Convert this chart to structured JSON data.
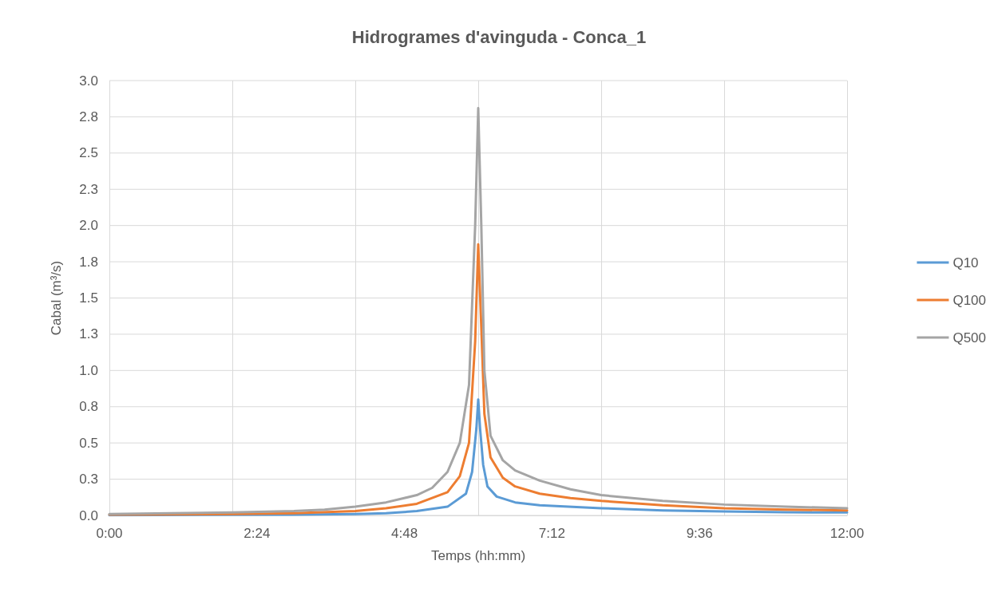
{
  "chart_data": {
    "type": "line",
    "title": "Hidrogrames d'avinguda - Conca_1",
    "xlabel": "Temps (hh:mm)",
    "ylabel": "Cabal (m³/s)",
    "xlim": [
      0,
      12
    ],
    "xticks": [
      {
        "value": 0,
        "label": "0:00"
      },
      {
        "value": 2.4,
        "label": "2:24"
      },
      {
        "value": 4.8,
        "label": "4:48"
      },
      {
        "value": 7.2,
        "label": "7:12"
      },
      {
        "value": 9.6,
        "label": "9:36"
      },
      {
        "value": 12,
        "label": "12:00"
      }
    ],
    "ylim": [
      0,
      3
    ],
    "yticks": [
      {
        "value": 0,
        "label": "0.0"
      },
      {
        "value": 0.25,
        "label": "0.3"
      },
      {
        "value": 0.5,
        "label": "0.5"
      },
      {
        "value": 0.75,
        "label": "0.8"
      },
      {
        "value": 1,
        "label": "1.0"
      },
      {
        "value": 1.25,
        "label": "1.3"
      },
      {
        "value": 1.5,
        "label": "1.5"
      },
      {
        "value": 1.75,
        "label": "1.8"
      },
      {
        "value": 2,
        "label": "2.0"
      },
      {
        "value": 2.25,
        "label": "2.3"
      },
      {
        "value": 2.5,
        "label": "2.5"
      },
      {
        "value": 2.75,
        "label": "2.8"
      },
      {
        "value": 3,
        "label": "3.0"
      }
    ],
    "grid": true,
    "legend": "right",
    "marker": "none",
    "line_style": "solid",
    "series": [
      {
        "name": "Q10",
        "color": "#5b9bd5",
        "x": [
          0,
          3,
          4,
          4.5,
          5,
          5.5,
          5.8,
          5.9,
          5.97,
          6,
          6.03,
          6.08,
          6.15,
          6.3,
          6.6,
          7,
          8,
          9,
          10,
          11,
          12
        ],
        "values": [
          0.002,
          0.005,
          0.01,
          0.015,
          0.03,
          0.06,
          0.15,
          0.3,
          0.6,
          0.8,
          0.6,
          0.35,
          0.2,
          0.13,
          0.09,
          0.07,
          0.05,
          0.035,
          0.028,
          0.022,
          0.02
        ]
      },
      {
        "name": "Q100",
        "color": "#ed7d31",
        "x": [
          0,
          2,
          3,
          4,
          4.5,
          5,
          5.5,
          5.7,
          5.85,
          5.95,
          6,
          6.05,
          6.1,
          6.2,
          6.4,
          6.6,
          7,
          7.5,
          8,
          9,
          10,
          11,
          12
        ],
        "values": [
          0.005,
          0.01,
          0.015,
          0.03,
          0.05,
          0.08,
          0.16,
          0.27,
          0.5,
          1.2,
          1.87,
          1.3,
          0.7,
          0.4,
          0.26,
          0.2,
          0.15,
          0.12,
          0.1,
          0.07,
          0.05,
          0.04,
          0.035
        ]
      },
      {
        "name": "Q500",
        "color": "#a5a5a5",
        "x": [
          0,
          1,
          2,
          3,
          3.5,
          4,
          4.5,
          5,
          5.25,
          5.5,
          5.7,
          5.85,
          5.95,
          6,
          6.05,
          6.1,
          6.2,
          6.4,
          6.6,
          7,
          7.5,
          8,
          9,
          10,
          11,
          12
        ],
        "values": [
          0.01,
          0.015,
          0.02,
          0.03,
          0.04,
          0.06,
          0.09,
          0.14,
          0.19,
          0.3,
          0.5,
          0.9,
          2,
          2.81,
          2,
          1,
          0.55,
          0.38,
          0.31,
          0.24,
          0.18,
          0.14,
          0.1,
          0.075,
          0.06,
          0.05
        ]
      }
    ]
  }
}
